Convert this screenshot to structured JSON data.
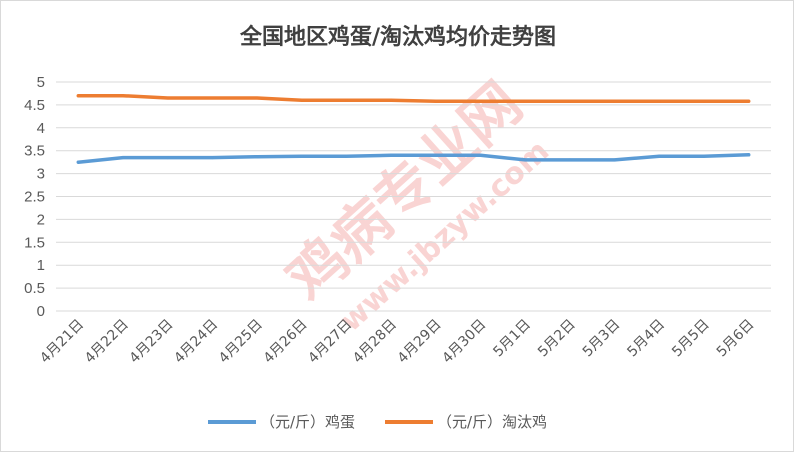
{
  "chart_data": {
    "type": "line",
    "title": "全国地区鸡蛋/淘汰鸡均价走势图",
    "categories": [
      "4月21日",
      "4月22日",
      "4月23日",
      "4月24日",
      "4月25日",
      "4月26日",
      "4月27日",
      "4月28日",
      "4月29日",
      "4月30日",
      "5月1日",
      "5月2日",
      "5月3日",
      "5月4日",
      "5月5日",
      "5月6日"
    ],
    "ylim": [
      0,
      5
    ],
    "yticks": [
      "0",
      "0.5",
      "1",
      "1.5",
      "2",
      "2.5",
      "3",
      "3.5",
      "4",
      "4.5",
      "5"
    ],
    "grid": true,
    "legend": "bottom",
    "series": [
      {
        "name": "（元/斤）鸡蛋",
        "color": "#5b9bd5",
        "values": [
          3.25,
          3.35,
          3.35,
          3.35,
          3.37,
          3.38,
          3.38,
          3.4,
          3.4,
          3.4,
          3.3,
          3.3,
          3.3,
          3.38,
          3.38,
          3.41
        ]
      },
      {
        "name": "（元/斤）淘汰鸡",
        "color": "#ed7d31",
        "values": [
          4.7,
          4.7,
          4.65,
          4.65,
          4.65,
          4.6,
          4.6,
          4.6,
          4.58,
          4.58,
          4.58,
          4.58,
          4.58,
          4.58,
          4.58,
          4.58
        ]
      }
    ]
  },
  "watermark": {
    "main": "鸡病专业网",
    "url": "www.jbzyw.com"
  }
}
